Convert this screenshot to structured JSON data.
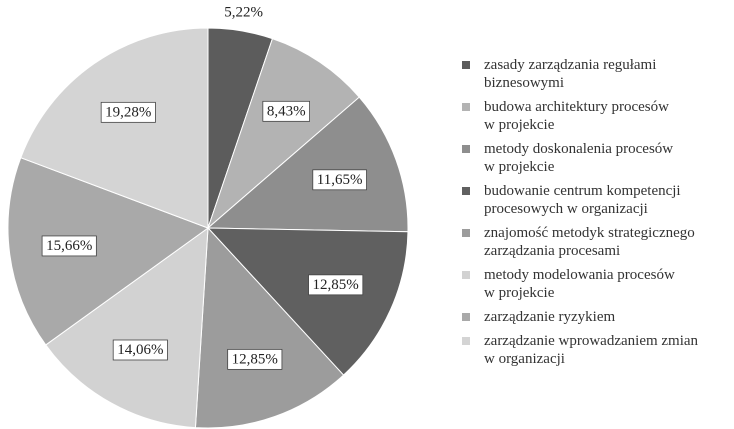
{
  "chart_data": {
    "type": "pie",
    "categories": [
      "zasady zarządzania regułami\nbiznesowymi",
      "budowa architektury procesów\nw projekcie",
      "metody doskonalenia procesów\nw projekcie",
      "budowanie centrum kompetencji\nprocesowych w organizacji",
      "znajomość metodyk strategicznego\nzarządzania procesami",
      "metody modelowania procesów\nw projekcie",
      "zarządzanie ryzykiem",
      "zarządzanie wprowadzaniem zmian\nw organizacji"
    ],
    "values": [
      5.22,
      8.43,
      11.65,
      12.85,
      12.85,
      14.06,
      15.66,
      19.28
    ],
    "value_labels": [
      "5,22%",
      "8,43%",
      "11,65%",
      "12,85%",
      "12,85%",
      "14,06%",
      "15,66%",
      "19,28%"
    ],
    "colors": [
      "#5c5c5c",
      "#b3b3b3",
      "#8e8e8e",
      "#606060",
      "#9c9c9c",
      "#d2d2d2",
      "#a9a9a9",
      "#d4d4d4"
    ],
    "legend": "right"
  }
}
